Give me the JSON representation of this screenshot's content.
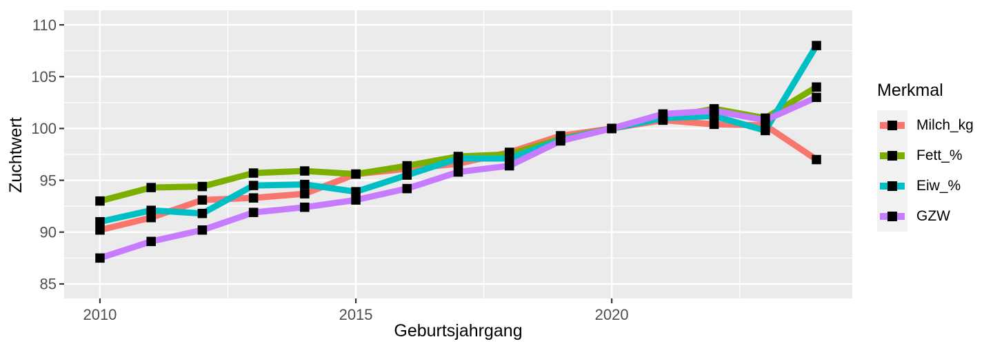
{
  "figure": {
    "background": "#FFFFFF",
    "panel_background": "#EBEBEB",
    "grid_color": "#FFFFFF",
    "tick_color": "#333333",
    "tick_label_color": "#4D4D4D",
    "title_color": "#000000",
    "marker_color": "#000000",
    "legend_key_background": "#F2F2F2"
  },
  "chart_data": {
    "type": "line",
    "title": "",
    "xlabel": "Geburtsjahrgang",
    "ylabel": "Zuchtwert",
    "legend_title": "Merkmal",
    "legend_position": "right",
    "grid": true,
    "marker": "black-square",
    "x": [
      2010,
      2011,
      2012,
      2013,
      2014,
      2015,
      2016,
      2017,
      2018,
      2019,
      2020,
      2021,
      2022,
      2023,
      2024
    ],
    "series": [
      {
        "name": "Milch_kg",
        "color": "#F8766D",
        "values": [
          90.2,
          91.4,
          93.1,
          93.3,
          93.7,
          95.6,
          96.1,
          96.6,
          97.7,
          99.3,
          100,
          100.8,
          100.4,
          100.3,
          97
        ]
      },
      {
        "name": "Fett_%",
        "color": "#7CAE00",
        "values": [
          93,
          94.3,
          94.4,
          95.7,
          95.9,
          95.6,
          96.4,
          97.3,
          97.5,
          99,
          100,
          101,
          101.9,
          101,
          104
        ]
      },
      {
        "name": "Eiw_%",
        "color": "#00BFC4",
        "values": [
          91,
          92.1,
          91.8,
          94.5,
          94.6,
          93.9,
          95.5,
          97.1,
          97.1,
          98.9,
          100,
          101,
          101.2,
          99.8,
          108
        ]
      },
      {
        "name": "GZW",
        "color": "#C77CFF",
        "values": [
          87.5,
          89.1,
          90.2,
          91.9,
          92.4,
          93.1,
          94.2,
          95.8,
          96.4,
          98.8,
          100,
          101.4,
          101.7,
          100.8,
          103
        ]
      }
    ],
    "x_ticks": [
      2010,
      2015,
      2020
    ],
    "x_minor_gridlines": [
      2012.5,
      2017.5,
      2022.5
    ],
    "y_ticks": [
      85,
      90,
      95,
      100,
      105,
      110
    ],
    "y_minor_gridlines": [
      87.5,
      92.5,
      97.5,
      102.5,
      107.5
    ],
    "xlim": [
      2009.3,
      2024.7
    ],
    "ylim": [
      83.6,
      111.4
    ]
  }
}
